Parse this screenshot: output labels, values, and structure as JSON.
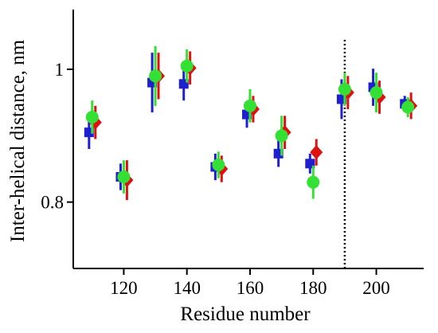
{
  "chart_data": {
    "type": "scatter",
    "xlabel": "Residue number",
    "ylabel": "Inter-helical distance, nm",
    "xlim": [
      104,
      215
    ],
    "ylim": [
      0.7,
      1.09
    ],
    "x_ticks": [
      120,
      140,
      160,
      180,
      200
    ],
    "x_tick_labels": [
      "120",
      "140",
      "160",
      "180",
      "200"
    ],
    "y_ticks": [
      0.8,
      1.0
    ],
    "y_tick_labels": [
      "0.8",
      "1"
    ],
    "reference_line_x": 190,
    "reference_line_style": "dotted",
    "grid": false,
    "legend": "none",
    "series": [
      {
        "color": "#1f1fd0",
        "marker": "square",
        "x_offset": -1.0,
        "points": [
          {
            "x": 110,
            "y": 0.905,
            "err": 0.025
          },
          {
            "x": 120,
            "y": 0.838,
            "err": 0.02
          },
          {
            "x": 130,
            "y": 0.98,
            "err": 0.045
          },
          {
            "x": 140,
            "y": 0.978,
            "err": 0.025
          },
          {
            "x": 150,
            "y": 0.853,
            "err": 0.02
          },
          {
            "x": 160,
            "y": 0.932,
            "err": 0.02
          },
          {
            "x": 170,
            "y": 0.873,
            "err": 0.02
          },
          {
            "x": 180,
            "y": 0.858,
            "err": 0.015
          },
          {
            "x": 190,
            "y": 0.955,
            "err": 0.03
          },
          {
            "x": 200,
            "y": 0.973,
            "err": 0.028
          },
          {
            "x": 210,
            "y": 0.948,
            "err": 0.012
          }
        ]
      },
      {
        "color": "#e01010",
        "marker": "diamond",
        "x_offset": 1.0,
        "points": [
          {
            "x": 110,
            "y": 0.92,
            "err": 0.025
          },
          {
            "x": 120,
            "y": 0.833,
            "err": 0.03
          },
          {
            "x": 130,
            "y": 0.99,
            "err": 0.035
          },
          {
            "x": 140,
            "y": 1.002,
            "err": 0.025
          },
          {
            "x": 150,
            "y": 0.85,
            "err": 0.02
          },
          {
            "x": 160,
            "y": 0.94,
            "err": 0.02
          },
          {
            "x": 170,
            "y": 0.905,
            "err": 0.025
          },
          {
            "x": 180,
            "y": 0.875,
            "err": 0.02
          },
          {
            "x": 190,
            "y": 0.965,
            "err": 0.025
          },
          {
            "x": 200,
            "y": 0.958,
            "err": 0.025
          },
          {
            "x": 210,
            "y": 0.945,
            "err": 0.02
          }
        ]
      },
      {
        "color": "#33e033",
        "marker": "circle",
        "x_offset": 0.0,
        "points": [
          {
            "x": 110,
            "y": 0.928,
            "err": 0.025
          },
          {
            "x": 120,
            "y": 0.838,
            "err": 0.025
          },
          {
            "x": 130,
            "y": 0.99,
            "err": 0.045
          },
          {
            "x": 140,
            "y": 1.005,
            "err": 0.025
          },
          {
            "x": 150,
            "y": 0.856,
            "err": 0.02
          },
          {
            "x": 160,
            "y": 0.945,
            "err": 0.025
          },
          {
            "x": 170,
            "y": 0.9,
            "err": 0.03
          },
          {
            "x": 180,
            "y": 0.83,
            "err": 0.025
          },
          {
            "x": 190,
            "y": 0.97,
            "err": 0.025
          },
          {
            "x": 200,
            "y": 0.965,
            "err": 0.03
          },
          {
            "x": 210,
            "y": 0.943,
            "err": 0.015
          }
        ]
      }
    ]
  }
}
